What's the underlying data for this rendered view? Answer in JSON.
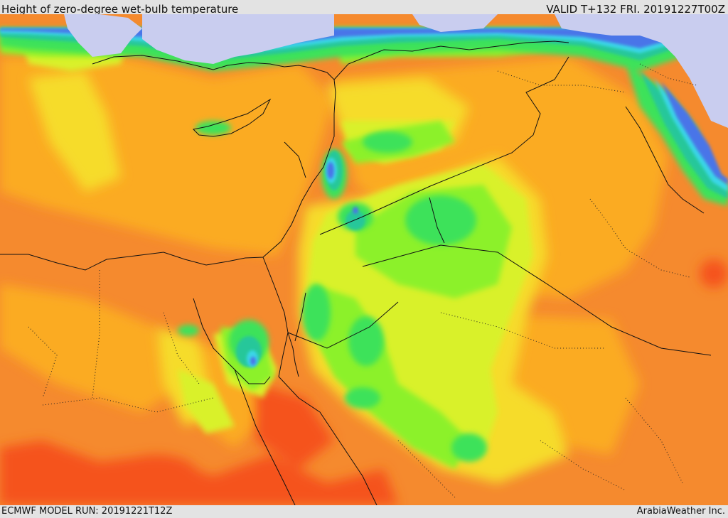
{
  "header": {
    "title": "Height of zero-degree wet-bulb temperature",
    "valid": "VALID T+132 FRI. 20191227T00Z"
  },
  "footer": {
    "model_run": "ECMWF MODEL RUN: 20191221T12Z",
    "credit": "ArabiaWeather Inc."
  },
  "colors": {
    "land_base": "#f58a2e",
    "sea_base": "#f58a2e",
    "orange_light": "#fbab24",
    "red_orange": "#f5521c",
    "yellow": "#f6dc2a",
    "yellow_green": "#d9f12c",
    "green_light": "#8cf12c",
    "green": "#3ee25a",
    "teal": "#26c79a",
    "cyan": "#3ad7e8",
    "blue": "#4a74e8",
    "lavender": "#c9cdef",
    "border_line": "#111111"
  }
}
